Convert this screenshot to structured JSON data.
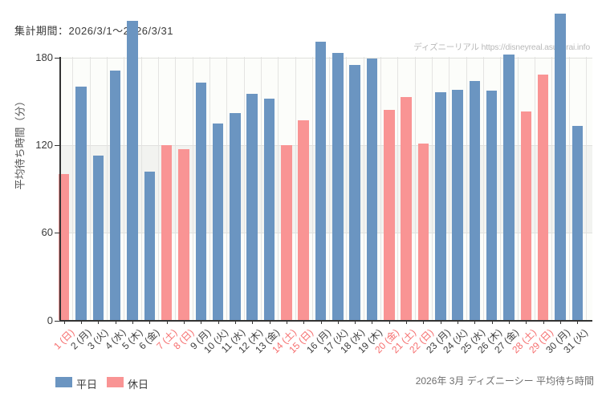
{
  "page": {
    "title": "集計期間：2026/3/1～2026/3/31",
    "watermark": "ディズニーリアル https://disneyreal.asumirai.info",
    "caption": "2026年 3月 ディズニーシー 平均待ち時間"
  },
  "chart_data": {
    "type": "bar",
    "title": "集計期間：2026/3/1～2026/3/31",
    "ylabel": "平均待ち時間（分）",
    "xlabel": "",
    "yticks": [
      0,
      60,
      120,
      180
    ],
    "ylim": [
      0,
      180
    ],
    "bars_overflow_axis_top": true,
    "grid": true,
    "shaded_band": {
      "from": 60,
      "to": 120
    },
    "legend_position": "bottom-left",
    "series_legend": [
      {
        "name": "平日",
        "color": "#6b95c1"
      },
      {
        "name": "休日",
        "color": "#f99494"
      }
    ],
    "colors": {
      "平日": "#6b95c1",
      "休日": "#f99494",
      "weekday_label": "#3d3d3d",
      "holiday_label": "#f66f6f",
      "axis": "#333333",
      "gridline": "#e4e4e2",
      "band": "#f2f3f0",
      "watermark": "#b9b9b9"
    },
    "days": [
      {
        "label": "1 (日)",
        "value": 100,
        "type": "休日"
      },
      {
        "label": "2 (月)",
        "value": 160,
        "type": "平日"
      },
      {
        "label": "3 (火)",
        "value": 113,
        "type": "平日"
      },
      {
        "label": "4 (水)",
        "value": 171,
        "type": "平日"
      },
      {
        "label": "5 (木)",
        "value": 205,
        "type": "平日"
      },
      {
        "label": "6 (金)",
        "value": 102,
        "type": "平日"
      },
      {
        "label": "7 (土)",
        "value": 120,
        "type": "休日"
      },
      {
        "label": "8 (日)",
        "value": 117,
        "type": "休日"
      },
      {
        "label": "9 (月)",
        "value": 163,
        "type": "平日"
      },
      {
        "label": "10 (火)",
        "value": 135,
        "type": "平日"
      },
      {
        "label": "11 (水)",
        "value": 142,
        "type": "平日"
      },
      {
        "label": "12 (木)",
        "value": 155,
        "type": "平日"
      },
      {
        "label": "13 (金)",
        "value": 152,
        "type": "平日"
      },
      {
        "label": "14 (土)",
        "value": 120,
        "type": "休日"
      },
      {
        "label": "15 (日)",
        "value": 137,
        "type": "休日"
      },
      {
        "label": "16 (月)",
        "value": 191,
        "type": "平日"
      },
      {
        "label": "17 (火)",
        "value": 183,
        "type": "平日"
      },
      {
        "label": "18 (水)",
        "value": 175,
        "type": "平日"
      },
      {
        "label": "19 (木)",
        "value": 179,
        "type": "平日"
      },
      {
        "label": "20 (金)",
        "value": 144,
        "type": "休日"
      },
      {
        "label": "21 (土)",
        "value": 153,
        "type": "休日"
      },
      {
        "label": "22 (日)",
        "value": 121,
        "type": "休日"
      },
      {
        "label": "23 (月)",
        "value": 156,
        "type": "平日"
      },
      {
        "label": "24 (火)",
        "value": 158,
        "type": "平日"
      },
      {
        "label": "25 (水)",
        "value": 164,
        "type": "平日"
      },
      {
        "label": "26 (木)",
        "value": 157,
        "type": "平日"
      },
      {
        "label": "27 (金)",
        "value": 182,
        "type": "平日"
      },
      {
        "label": "28 (土)",
        "value": 143,
        "type": "休日"
      },
      {
        "label": "29 (日)",
        "value": 168,
        "type": "休日"
      },
      {
        "label": "30 (月)",
        "value": 210,
        "type": "平日"
      },
      {
        "label": "31 (火)",
        "value": 133,
        "type": "平日"
      }
    ]
  }
}
